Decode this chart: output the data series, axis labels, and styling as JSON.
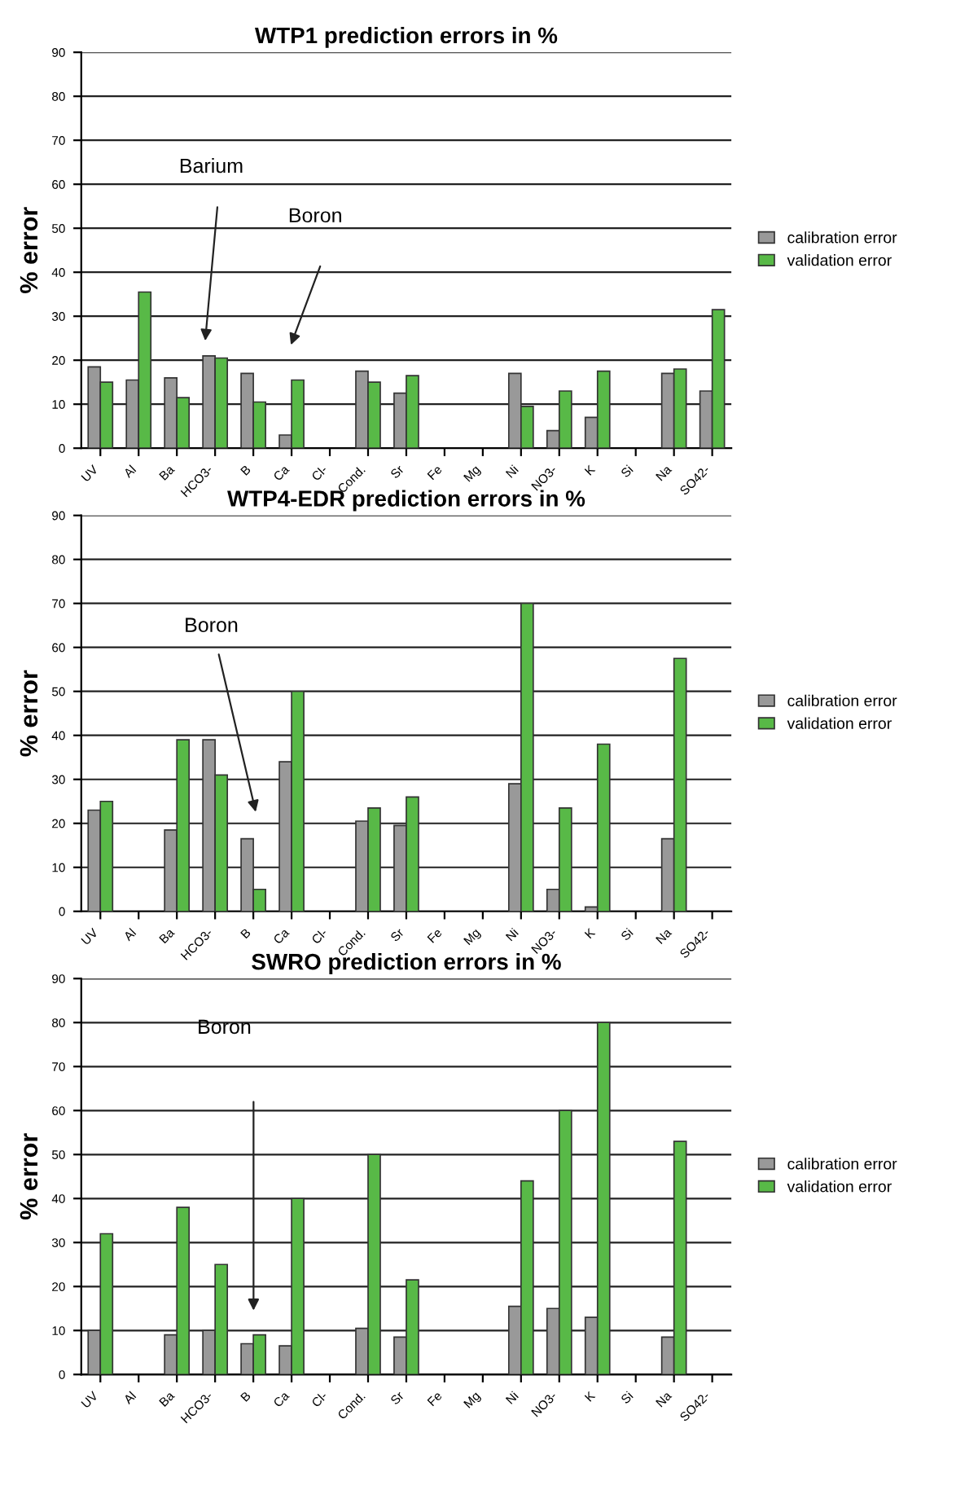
{
  "chart_data": [
    {
      "type": "bar",
      "title": "WTP1 prediction errors in %",
      "ylabel": "% error",
      "categories": [
        "UV",
        "Al",
        "Ba",
        "HCO3-",
        "B",
        "Ca",
        "Cl-",
        "Cond.",
        "Sr",
        "Fe",
        "Mg",
        "Ni",
        "NO3-",
        "K",
        "Si",
        "Na",
        "SO42-"
      ],
      "series": [
        {
          "name": "calibration error",
          "color": "#999999",
          "values": [
            18.5,
            15.5,
            16,
            21,
            17,
            3,
            null,
            17.5,
            12.5,
            null,
            null,
            17,
            4,
            7,
            null,
            17,
            13
          ]
        },
        {
          "name": "validation error",
          "color": "#58b947",
          "values": [
            15,
            35.5,
            11.5,
            20.5,
            10.5,
            15.5,
            null,
            15,
            16.5,
            null,
            null,
            9.5,
            13,
            17.5,
            null,
            18,
            31.5
          ]
        }
      ],
      "ylim": [
        0,
        90
      ],
      "yticks": [
        0,
        10,
        20,
        30,
        40,
        50,
        60,
        70,
        80,
        90
      ],
      "grid": "y",
      "legend": "right",
      "annotations": [
        "Barium",
        "Boron"
      ]
    },
    {
      "type": "bar",
      "title": "WTP4-EDR prediction errors in %",
      "ylabel": "% error",
      "categories": [
        "UV",
        "Al",
        "Ba",
        "HCO3-",
        "B",
        "Ca",
        "Cl-",
        "Cond.",
        "Sr",
        "Fe",
        "Mg",
        "Ni",
        "NO3-",
        "K",
        "Si",
        "Na",
        "SO42-"
      ],
      "series": [
        {
          "name": "calibration error",
          "color": "#999999",
          "values": [
            23,
            null,
            18.5,
            39,
            16.5,
            34,
            null,
            20.5,
            19.5,
            null,
            null,
            29,
            5,
            1,
            null,
            16.5,
            null
          ]
        },
        {
          "name": "validation error",
          "color": "#58b947",
          "values": [
            25,
            null,
            39,
            31,
            5,
            50,
            null,
            23.5,
            26,
            null,
            null,
            70,
            23.5,
            38,
            null,
            57.5,
            null
          ]
        }
      ],
      "ylim": [
        0,
        90
      ],
      "yticks": [
        0,
        10,
        20,
        30,
        40,
        50,
        60,
        70,
        80,
        90
      ],
      "grid": "y",
      "legend": "right",
      "annotations": [
        "Boron"
      ]
    },
    {
      "type": "bar",
      "title": "SWRO prediction errors in %",
      "ylabel": "% error",
      "categories": [
        "UV",
        "Al",
        "Ba",
        "HCO3-",
        "B",
        "Ca",
        "Cl-",
        "Cond.",
        "Sr",
        "Fe",
        "Mg",
        "Ni",
        "NO3-",
        "K",
        "Si",
        "Na",
        "SO42-"
      ],
      "series": [
        {
          "name": "calibration error",
          "color": "#999999",
          "values": [
            10,
            null,
            9,
            10,
            7,
            6.5,
            null,
            10.5,
            8.5,
            null,
            null,
            15.5,
            15,
            13,
            null,
            8.5,
            null
          ]
        },
        {
          "name": "validation error",
          "color": "#58b947",
          "values": [
            32,
            null,
            38,
            25,
            9,
            40,
            null,
            50,
            21.5,
            null,
            null,
            44,
            60,
            80,
            null,
            53,
            null
          ]
        }
      ],
      "ylim": [
        0,
        90
      ],
      "yticks": [
        0,
        10,
        20,
        30,
        40,
        50,
        60,
        70,
        80,
        90
      ],
      "grid": "y",
      "legend": "right",
      "annotations": [
        "Boron"
      ]
    }
  ]
}
